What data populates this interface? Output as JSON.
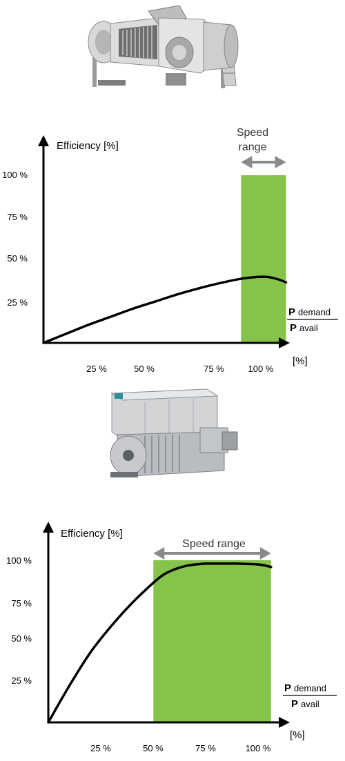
{
  "icons": {
    "turbine_icon": "gas-turbine-icon",
    "motor_icon": "electric-motor-icon"
  },
  "colors": {
    "speed_range_fill": "#86c34a",
    "curve": "#000000",
    "arrow": "#8a8a8a"
  },
  "chart_data": [
    {
      "type": "line",
      "ylabel": "Efficiency [%]",
      "xlabel": "[%]",
      "x_ratio_label": {
        "numerator_bold": "P",
        "numerator": "demand",
        "denominator_bold": "P",
        "denominator": "avail"
      },
      "x_ticks": [
        "25 %",
        "50 %",
        "75 %",
        "100 %"
      ],
      "y_ticks": [
        "25 %",
        "50 %",
        "75 %",
        "100 %"
      ],
      "range_label": "Speed range",
      "range_label_lines": [
        "Speed",
        "range"
      ],
      "xlim": [
        0,
        110
      ],
      "ylim": [
        0,
        110
      ],
      "speed_range": [
        88,
        108
      ],
      "series": [
        {
          "x": [
            0,
            10,
            20,
            30,
            40,
            50,
            60,
            70,
            80,
            88,
            95,
            100,
            105,
            108
          ],
          "y": [
            0,
            5,
            10,
            14.5,
            19,
            23,
            27,
            30.5,
            33.5,
            35.5,
            36.5,
            36.5,
            35,
            33.5
          ]
        }
      ]
    },
    {
      "type": "line",
      "ylabel": "Efficiency [%]",
      "xlabel": "[%]",
      "x_ratio_label": {
        "numerator_bold": "P",
        "numerator": "demand",
        "denominator_bold": "P",
        "denominator": "avail"
      },
      "x_ticks": [
        "25 %",
        "50 %",
        "75 %",
        "100 %"
      ],
      "y_ticks": [
        "25 %",
        "50 %",
        "75 %",
        "100 %"
      ],
      "range_label": "Speed range",
      "range_label_lines": [
        "Speed range"
      ],
      "xlim": [
        0,
        110
      ],
      "ylim": [
        0,
        110
      ],
      "speed_range": [
        50,
        106
      ],
      "series": [
        {
          "x": [
            0,
            10,
            20,
            30,
            40,
            50,
            55,
            60,
            65,
            70,
            75,
            80,
            90,
            100,
            106
          ],
          "y": [
            0,
            22,
            42,
            58,
            72,
            84,
            89,
            92,
            94,
            95,
            95.5,
            95.5,
            95.5,
            95,
            93.5
          ]
        }
      ]
    }
  ]
}
